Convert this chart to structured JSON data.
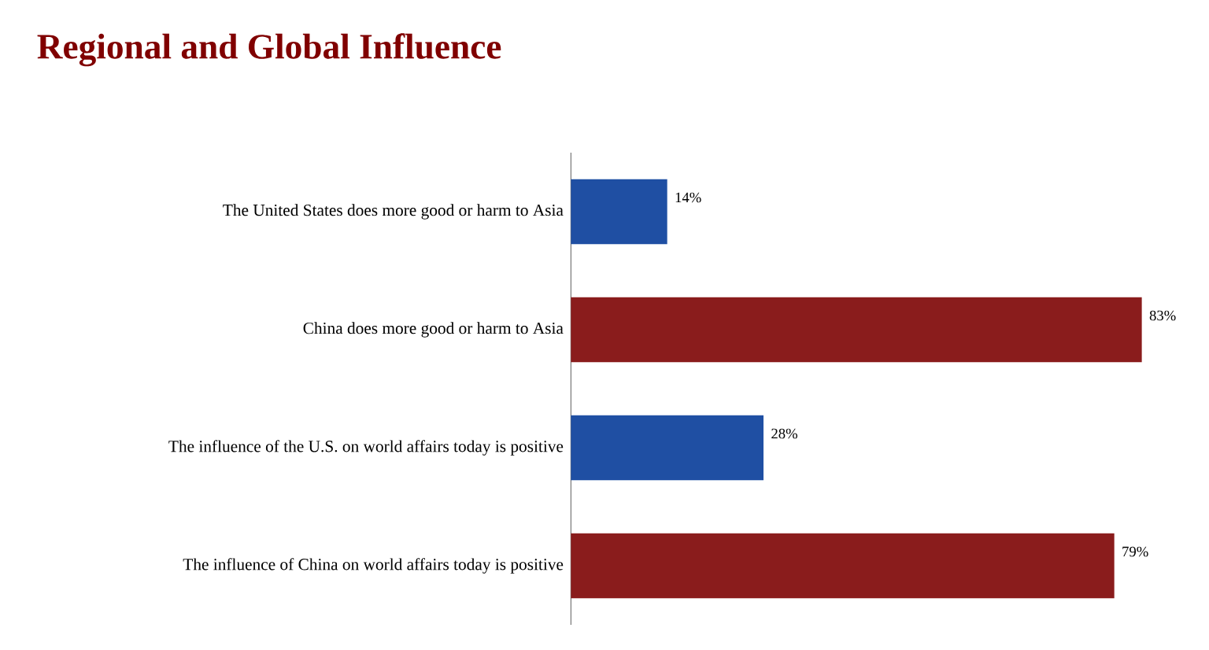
{
  "chart_data": {
    "type": "bar",
    "orientation": "horizontal",
    "title": "Regional and Global Influence",
    "categories": [
      "The United States does more good or harm to Asia",
      "China does more good or harm to Asia",
      "The influence of the U.S. on world affairs today is positive",
      "The influence of China on world affairs today is positive"
    ],
    "values": [
      14,
      83,
      28,
      79
    ],
    "colors": [
      "#1f4fa3",
      "#8a1c1c",
      "#1f4fa3",
      "#8a1c1c"
    ],
    "value_labels": [
      "14%",
      "83%",
      "28%",
      "79%"
    ]
  }
}
